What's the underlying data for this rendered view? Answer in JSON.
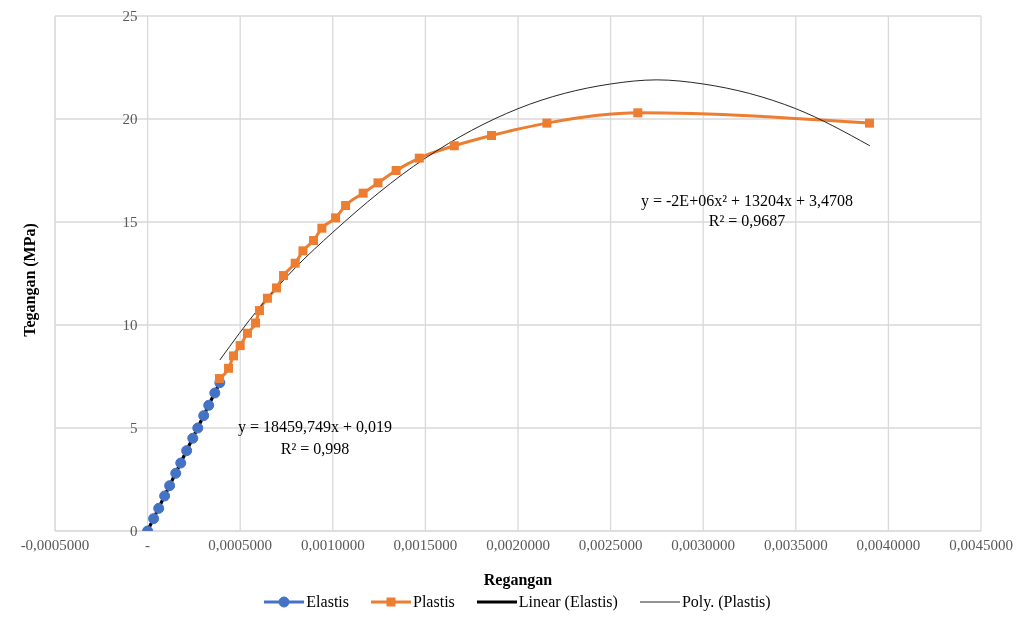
{
  "chart_data": {
    "type": "line",
    "xlabel": "Regangan",
    "ylabel": "Tegangan (MPa)",
    "xlim": [
      -0.0005,
      0.0045
    ],
    "xticks": [
      {
        "value": -0.0005,
        "label": "-0,0005000"
      },
      {
        "value": 0,
        "label": "-"
      },
      {
        "value": 0.0005,
        "label": "0,0005000"
      },
      {
        "value": 0.001,
        "label": "0,0010000"
      },
      {
        "value": 0.0015,
        "label": "0,0015000"
      },
      {
        "value": 0.002,
        "label": "0,0020000"
      },
      {
        "value": 0.0025,
        "label": "0,0025000"
      },
      {
        "value": 0.003,
        "label": "0,0030000"
      },
      {
        "value": 0.0035,
        "label": "0,0035000"
      },
      {
        "value": 0.004,
        "label": "0,0040000"
      },
      {
        "value": 0.0045,
        "label": "0,0045000"
      }
    ],
    "ylim": [
      0,
      25
    ],
    "yticks": [
      0,
      5,
      10,
      15,
      20,
      25
    ],
    "grid": true,
    "legend": "bottom",
    "series": [
      {
        "name": "Elastis",
        "color": "#4472c4",
        "marker": "circle",
        "x": [
          0,
          3.25e-05,
          6e-05,
          9.2e-05,
          0.000119,
          0.000152,
          0.000179,
          0.000211,
          0.000244,
          0.000271,
          0.000303,
          0.00033,
          0.000363,
          0.00039
        ],
        "values": [
          0,
          0.6,
          1.1,
          1.7,
          2.2,
          2.8,
          3.3,
          3.9,
          4.5,
          5.0,
          5.6,
          6.1,
          6.7,
          7.2
        ]
      },
      {
        "name": "Plastis",
        "color": "#ed7d31",
        "marker": "square",
        "x": [
          0.000388,
          0.000437,
          0.000464,
          0.0005,
          0.000539,
          0.000583,
          0.000604,
          0.000647,
          0.000696,
          0.000734,
          0.000797,
          0.000839,
          0.000896,
          0.000941,
          0.001015,
          0.001069,
          0.001164,
          0.001244,
          0.001342,
          0.001467,
          0.001656,
          0.001857,
          0.002156,
          0.002647,
          0.003898
        ],
        "values": [
          7.4,
          7.9,
          8.5,
          9.0,
          9.6,
          10.1,
          10.7,
          11.3,
          11.8,
          12.4,
          13.0,
          13.6,
          14.1,
          14.7,
          15.2,
          15.8,
          16.4,
          16.9,
          17.5,
          18.1,
          18.7,
          19.2,
          19.8,
          20.3,
          19.8
        ]
      },
      {
        "name": "Linear (Elastis)",
        "color": "#000000",
        "marker": "none",
        "x": [
          0,
          0.00039
        ],
        "values": [
          0.02,
          7.22
        ]
      },
      {
        "name": "Poly. (Plastis)",
        "color": "#262626",
        "marker": "none",
        "x": [
          0.00039,
          0.0006,
          0.0008,
          0.001,
          0.0015,
          0.002,
          0.0025,
          0.00275,
          0.003,
          0.0035,
          0.0039
        ],
        "values": [
          8.3,
          10.8,
          12.8,
          14.5,
          18.1,
          20.5,
          21.7,
          21.9,
          21.7,
          20.5,
          18.7
        ]
      }
    ],
    "annotations": [
      "y = 18459,749x + 0,019",
      "R² = 0,998",
      "y = -2E+06x² + 13204x + 3,4708",
      "R² = 0,9687"
    ]
  }
}
